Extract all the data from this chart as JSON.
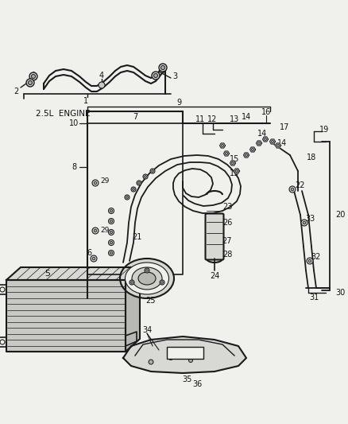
{
  "bg_color": "#f0f0ec",
  "line_color": "#1a1a1a",
  "text_color": "#111111",
  "figsize": [
    4.38,
    5.33
  ],
  "dpi": 100,
  "engine_label": "2.5L ENGINE"
}
